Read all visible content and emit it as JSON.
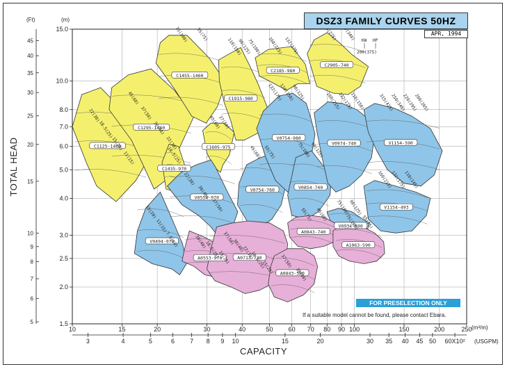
{
  "title": "DSZ3 FAMILY CURVES 50HZ",
  "date": "APR, 1994",
  "preselection": "FOR PRESELECTION ONLY",
  "note": "If a suitable model cannot be found, please contact Ebara.",
  "chart_data": {
    "type": "area",
    "title": "DSZ3 FAMILY CURVES 50HZ",
    "xlabel": "CAPACITY",
    "ylabel": "TOTAL HEAD",
    "x_unit": "(m³/m)",
    "x_secondary_unit": "(USGPM)",
    "y_unit": "(m)",
    "y_secondary_unit": "(Ft)",
    "x_scale": "log",
    "y_scale": "log",
    "xlim": [
      10,
      250
    ],
    "ylim": [
      1.5,
      15.0
    ],
    "x_ticks": [
      10,
      15,
      20,
      30,
      40,
      50,
      60,
      70,
      80,
      90,
      100,
      150,
      200,
      250
    ],
    "x_tick_labels": [
      "10",
      "15",
      "20",
      "30",
      "40",
      "50",
      "60",
      "70",
      "80",
      "90",
      "100",
      "150",
      "200",
      "250"
    ],
    "y_ticks": [
      1.5,
      2.0,
      2.5,
      3.0,
      4.0,
      5.0,
      6.0,
      7.0,
      8.0,
      10.0,
      15.0
    ],
    "y_tick_labels": [
      "1.5",
      "2.0",
      "2.5",
      "3.0",
      "4.0",
      "5.0",
      "6.0",
      "7.0",
      "8.0",
      "10.0",
      "15.0"
    ],
    "ft_ticks": [
      "5",
      "6",
      "7",
      "8",
      "9",
      "10",
      "15",
      "20",
      "25",
      "30",
      "35",
      "40",
      "45"
    ],
    "usgpm_ticks": [
      "3",
      "4",
      "5",
      "6",
      "7",
      "8",
      "9",
      "10",
      "15",
      "20",
      "30",
      "35",
      "40",
      "45",
      "50",
      "60X10²"
    ],
    "kw_hp_note": {
      "kw_label": "KW",
      "hp_label": "HP",
      "example": "200(375)"
    },
    "legend": "none",
    "grid": true,
    "series": [
      {
        "name": "C1125-1460",
        "color": "#f4f06e",
        "polygon": [
          [
            11.2,
            5.3
          ],
          [
            10.0,
            7.0
          ],
          [
            10.8,
            9.0
          ],
          [
            12.6,
            9.5
          ],
          [
            15.8,
            7.6
          ],
          [
            18.7,
            5.5
          ],
          [
            16.8,
            4.6
          ],
          [
            14.3,
            3.9
          ],
          [
            12.2,
            4.4
          ]
        ],
        "kw_hp": [
          "22(30)",
          "18.5(25)",
          "15(20)",
          "11(15)"
        ]
      },
      {
        "name": "C1295-1460",
        "color": "#f4f06e",
        "polygon": [
          [
            13.5,
            8.0
          ],
          [
            13.8,
            9.5
          ],
          [
            15.8,
            10.5
          ],
          [
            19.0,
            11.0
          ],
          [
            23.0,
            9.3
          ],
          [
            27.0,
            7.6
          ],
          [
            24.5,
            6.2
          ],
          [
            22.5,
            5.2
          ],
          [
            21.4,
            4.6
          ],
          [
            19.5,
            4.3
          ],
          [
            17.8,
            5.2
          ],
          [
            16.2,
            6.3
          ]
        ],
        "kw_hp": [
          "45(60)",
          "37(50)",
          "30(40)",
          "22(30)"
        ]
      },
      {
        "name": "C1455-1460",
        "color": "#f4f06e",
        "polygon": [
          [
            19.8,
            11.5
          ],
          [
            20.5,
            13.5
          ],
          [
            22.0,
            14.3
          ],
          [
            25.5,
            14.3
          ],
          [
            30.5,
            12.0
          ],
          [
            35.0,
            9.9
          ],
          [
            32.7,
            8.2
          ],
          [
            29.8,
            7.2
          ],
          [
            26.5,
            7.6
          ],
          [
            23.2,
            9.3
          ]
        ],
        "kw_hp": [
          "75(100)",
          "55(75)"
        ]
      },
      {
        "name": "C1435-970",
        "color": "#f4f06e",
        "polygon": [
          [
            20.8,
            5.3
          ],
          [
            22.0,
            6.1
          ],
          [
            23.8,
            6.0
          ],
          [
            25.0,
            5.2
          ],
          [
            24.5,
            4.6
          ],
          [
            23.5,
            4.2
          ],
          [
            21.5,
            4.3
          ]
        ],
        "kw_hp": [
          "18.5(25)"
        ]
      },
      {
        "name": "C1605-975",
        "color": "#f4f06e",
        "polygon": [
          [
            29.0,
            6.8
          ],
          [
            31.0,
            7.2
          ],
          [
            34.5,
            7.2
          ],
          [
            37.5,
            6.7
          ],
          [
            36.0,
            5.6
          ],
          [
            34.2,
            5.2
          ],
          [
            33.5,
            4.9
          ],
          [
            31.8,
            5.1
          ],
          [
            30.0,
            5.7
          ]
        ],
        "kw_hp": [
          "45(60)",
          "37(50)"
        ]
      },
      {
        "name": "C1915-980",
        "color": "#f4f06e",
        "polygon": [
          [
            33.0,
            11.8
          ],
          [
            39.5,
            13.0
          ],
          [
            42.5,
            11.3
          ],
          [
            45.5,
            9.8
          ],
          [
            49.5,
            8.0
          ],
          [
            46.0,
            6.7
          ],
          [
            40.7,
            6.3
          ],
          [
            38.0,
            6.3
          ],
          [
            36.5,
            7.3
          ],
          [
            34.5,
            8.5
          ],
          [
            33.2,
            10.0
          ]
        ],
        "kw_hp": [
          "110(150)",
          "90(125)",
          "75(100)"
        ]
      },
      {
        "name": "C2185-980",
        "color": "#f4f06e",
        "polygon": [
          [
            44.5,
            12.0
          ],
          [
            49.5,
            12.8
          ],
          [
            60.0,
            13.1
          ],
          [
            67.0,
            11.4
          ],
          [
            69.5,
            9.8
          ],
          [
            63.0,
            9.8
          ],
          [
            57.5,
            9.3
          ],
          [
            51.0,
            9.9
          ],
          [
            46.0,
            10.4
          ]
        ],
        "kw_hp": [
          "160(215)",
          "132(175)"
        ]
      },
      {
        "name": "C2905-740",
        "color": "#f4f06e",
        "polygon": [
          [
            68.0,
            12.4
          ],
          [
            72.0,
            13.8
          ],
          [
            80.0,
            14.6
          ],
          [
            88.5,
            13.5
          ],
          [
            98.0,
            12.3
          ],
          [
            112.0,
            11.2
          ],
          [
            105.0,
            9.6
          ],
          [
            95.0,
            9.0
          ],
          [
            84.0,
            9.1
          ],
          [
            73.5,
            9.6
          ]
        ],
        "kw_hp": [
          "200(275)",
          "250(340)"
        ]
      },
      {
        "name": "V0494-970",
        "color": "#8fc5e8",
        "polygon": [
          [
            18.2,
            3.7
          ],
          [
            17.0,
            3.1
          ],
          [
            16.6,
            2.6
          ],
          [
            19.2,
            2.4
          ],
          [
            22.6,
            2.3
          ],
          [
            24.0,
            2.2
          ],
          [
            25.4,
            2.4
          ],
          [
            24.6,
            2.8
          ],
          [
            22.0,
            3.6
          ],
          [
            20.5,
            4.2
          ]
        ],
        "kw_hp": [
          "15(20)",
          "11(15)",
          "7.5(10)"
        ]
      },
      {
        "name": "V0554-970",
        "color": "#8fc5e8",
        "polygon": [
          [
            21.7,
            4.4
          ],
          [
            24.3,
            4.9
          ],
          [
            27.5,
            5.2
          ],
          [
            31.0,
            5.4
          ],
          [
            32.2,
            5.1
          ],
          [
            35.5,
            4.2
          ],
          [
            38.6,
            3.6
          ],
          [
            37.0,
            3.2
          ],
          [
            33.5,
            2.9
          ],
          [
            31.0,
            3.2
          ],
          [
            28.0,
            3.5
          ],
          [
            24.5,
            3.8
          ]
        ],
        "kw_hp": [
          "22(30)",
          "30(40)",
          "37(50)"
        ]
      },
      {
        "name": "V0754-760",
        "color": "#8fc5e8",
        "polygon": [
          [
            38.5,
            3.8
          ],
          [
            39.0,
            4.5
          ],
          [
            41.5,
            5.2
          ],
          [
            46.5,
            5.5
          ],
          [
            52.0,
            5.7
          ],
          [
            55.0,
            5.3
          ],
          [
            57.0,
            4.4
          ],
          [
            55.0,
            3.8
          ],
          [
            51.0,
            3.4
          ],
          [
            46.5,
            3.2
          ],
          [
            42.0,
            3.3
          ]
        ],
        "kw_hp": [
          "45(60)",
          "55(75)"
        ]
      },
      {
        "name": "V0754-980",
        "color": "#8fc5e8",
        "polygon": [
          [
            45.0,
            6.9
          ],
          [
            47.5,
            7.9
          ],
          [
            54.0,
            8.9
          ],
          [
            60.5,
            9.1
          ],
          [
            67.5,
            8.4
          ],
          [
            70.0,
            7.5
          ],
          [
            72.5,
            6.6
          ],
          [
            70.0,
            5.4
          ],
          [
            65.0,
            4.6
          ],
          [
            58.0,
            4.2
          ],
          [
            52.5,
            4.6
          ],
          [
            48.5,
            5.5
          ]
        ],
        "kw_hp": [
          "132(175)",
          "110(150)",
          "90(125)"
        ]
      },
      {
        "name": "V0854-740",
        "color": "#8fc5e8",
        "polygon": [
          [
            62.0,
            5.5
          ],
          [
            70.5,
            5.8
          ],
          [
            77.0,
            5.2
          ],
          [
            83.0,
            4.8
          ],
          [
            82.0,
            4.1
          ],
          [
            74.5,
            3.6
          ],
          [
            67.5,
            3.4
          ],
          [
            60.0,
            3.5
          ],
          [
            58.0,
            4.1
          ]
        ],
        "kw_hp": [
          "75(100)",
          "90(125)"
        ]
      },
      {
        "name": "V0974-740",
        "color": "#8fc5e8",
        "polygon": [
          [
            72.0,
            7.8
          ],
          [
            80.5,
            8.5
          ],
          [
            90.5,
            8.4
          ],
          [
            102.0,
            8.0
          ],
          [
            115.0,
            7.3
          ],
          [
            118.0,
            6.6
          ],
          [
            115.0,
            5.5
          ],
          [
            106.0,
            4.8
          ],
          [
            96.0,
            4.4
          ],
          [
            86.0,
            4.2
          ],
          [
            80.5,
            4.5
          ],
          [
            76.5,
            5.6
          ],
          [
            73.5,
            6.8
          ]
        ],
        "kw_hp": [
          "160(215)",
          "132(175)",
          "110(150)"
        ]
      },
      {
        "name": "V0934-590",
        "color": "#8fc5e8",
        "polygon": [
          [
            80.0,
            3.6
          ],
          [
            88.0,
            3.7
          ],
          [
            98.0,
            3.6
          ],
          [
            107.0,
            3.4
          ],
          [
            113.0,
            3.3
          ],
          [
            110.0,
            3.0
          ],
          [
            102.0,
            2.85
          ],
          [
            94.0,
            2.8
          ],
          [
            86.0,
            2.95
          ]
        ],
        "kw_hp": [
          "75(100)",
          "90(125)"
        ]
      },
      {
        "name": "V1154-590",
        "color": "#8fc5e8",
        "polygon": [
          [
            108.0,
            8.0
          ],
          [
            118.0,
            8.4
          ],
          [
            138.0,
            8.1
          ],
          [
            160.0,
            7.6
          ],
          [
            186.0,
            6.9
          ],
          [
            205.0,
            5.8
          ],
          [
            192.0,
            4.8
          ],
          [
            172.0,
            4.4
          ],
          [
            150.0,
            4.5
          ],
          [
            131.0,
            5.0
          ],
          [
            120.0,
            5.8
          ],
          [
            112.0,
            6.7
          ]
        ],
        "kw_hp": [
          "315(425)",
          "250(340)",
          "220(295)",
          "200(265)"
        ]
      },
      {
        "name": "V1154-493",
        "color": "#8fc5e8",
        "polygon": [
          [
            108.0,
            4.4
          ],
          [
            118.0,
            4.6
          ],
          [
            140.0,
            4.4
          ],
          [
            165.0,
            4.2
          ],
          [
            186.0,
            4.0
          ],
          [
            180.0,
            3.5
          ],
          [
            160.0,
            3.1
          ],
          [
            140.0,
            3.05
          ],
          [
            124.0,
            3.1
          ],
          [
            112.0,
            3.4
          ]
        ],
        "kw_hp": [
          "160(215)",
          "132(175)",
          "110(145)"
        ]
      },
      {
        "name": "A0553-970",
        "color": "#e7b0d8",
        "polygon": [
          [
            26.0,
            3.1
          ],
          [
            29.5,
            2.95
          ],
          [
            33.5,
            2.75
          ],
          [
            38.2,
            2.6
          ],
          [
            39.5,
            2.35
          ],
          [
            37.0,
            2.2
          ],
          [
            33.0,
            2.15
          ],
          [
            29.5,
            2.2
          ],
          [
            27.0,
            2.35
          ],
          [
            24.5,
            2.45
          ],
          [
            25.0,
            2.7
          ]
        ],
        "kw_hp": [
          "30(40)",
          "18.5(25)",
          "15(20)"
        ]
      },
      {
        "name": "A0713-730",
        "color": "#e7b0d8",
        "polygon": [
          [
            32.5,
            3.2
          ],
          [
            37.0,
            3.3
          ],
          [
            42.0,
            3.35
          ],
          [
            50.0,
            3.3
          ],
          [
            56.0,
            3.1
          ],
          [
            58.0,
            2.8
          ],
          [
            57.0,
            2.4
          ],
          [
            54.5,
            2.15
          ],
          [
            51.0,
            2.05
          ],
          [
            46.0,
            1.95
          ],
          [
            41.0,
            1.9
          ],
          [
            36.5,
            2.0
          ],
          [
            32.0,
            2.1
          ],
          [
            30.0,
            2.3
          ],
          [
            31.0,
            2.7
          ]
        ],
        "kw_hp": [
          "37(50)",
          "30(40)",
          "22(30)",
          "18.5(25)",
          "15(20)"
        ]
      },
      {
        "name": "A0843-740",
        "color": "#e7b0d8",
        "polygon": [
          [
            58.0,
            3.3
          ],
          [
            62.0,
            3.45
          ],
          [
            70.0,
            3.5
          ],
          [
            78.0,
            3.45
          ],
          [
            85.0,
            3.3
          ],
          [
            88.0,
            3.05
          ],
          [
            85.0,
            2.85
          ],
          [
            78.0,
            2.75
          ],
          [
            70.0,
            2.7
          ],
          [
            63.0,
            2.75
          ],
          [
            59.0,
            2.95
          ]
        ],
        "kw_hp": [
          "55(75)",
          "45(60)"
        ]
      },
      {
        "name": "A0843-590",
        "color": "#e7b0d8",
        "polygon": [
          [
            52.0,
            2.55
          ],
          [
            58.0,
            2.7
          ],
          [
            66.0,
            2.7
          ],
          [
            72.0,
            2.55
          ],
          [
            74.0,
            2.35
          ],
          [
            72.0,
            2.05
          ],
          [
            66.0,
            1.88
          ],
          [
            58.0,
            1.78
          ],
          [
            52.0,
            1.85
          ],
          [
            49.5,
            2.05
          ],
          [
            50.5,
            2.35
          ]
        ],
        "kw_hp": [
          "37(50)",
          "30(40)"
        ]
      },
      {
        "name": "A1063-590",
        "color": "#e7b0d8",
        "polygon": [
          [
            84.0,
            3.1
          ],
          [
            92.0,
            3.3
          ],
          [
            104.0,
            3.25
          ],
          [
            118.0,
            3.05
          ],
          [
            127.0,
            2.85
          ],
          [
            128.0,
            2.6
          ],
          [
            120.0,
            2.45
          ],
          [
            108.0,
            2.4
          ],
          [
            96.0,
            2.45
          ],
          [
            88.0,
            2.55
          ],
          [
            84.0,
            2.75
          ]
        ],
        "kw_hp": [
          "75(100)",
          "55(75)"
        ]
      }
    ]
  }
}
